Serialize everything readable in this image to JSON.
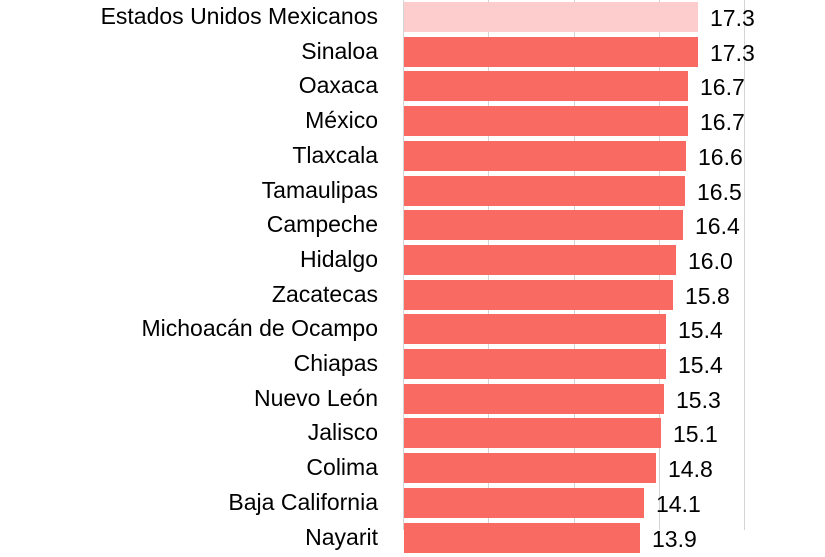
{
  "chart_data": {
    "type": "bar",
    "orientation": "horizontal",
    "title": "",
    "xlabel": "",
    "ylabel": "",
    "xlim": [
      0,
      20
    ],
    "gridlines_x": [
      0,
      5,
      10,
      15,
      20
    ],
    "grid": true,
    "categories": [
      "Estados Unidos Mexicanos",
      "Sinaloa",
      "Oaxaca",
      "México",
      "Tlaxcala",
      "Tamaulipas",
      "Campeche",
      "Hidalgo",
      "Zacatecas",
      "Michoacán de Ocampo",
      "Chiapas",
      "Nuevo León",
      "Jalisco",
      "Colima",
      "Baja California",
      "Nayarit"
    ],
    "values": [
      17.3,
      17.3,
      16.7,
      16.7,
      16.6,
      16.5,
      16.4,
      16.0,
      15.8,
      15.4,
      15.4,
      15.3,
      15.1,
      14.8,
      14.1,
      13.9
    ],
    "value_labels": [
      "17.3",
      "17.3",
      "16.7",
      "16.7",
      "16.6",
      "16.5",
      "16.4",
      "16.0",
      "15.8",
      "15.4",
      "15.4",
      "15.3",
      "15.1",
      "14.8",
      "14.1",
      "13.9"
    ],
    "highlight_index": 0,
    "colors": {
      "bar": "#f96b62",
      "total_bar": "#fccdcc",
      "grid": "#d4d4d4"
    }
  }
}
